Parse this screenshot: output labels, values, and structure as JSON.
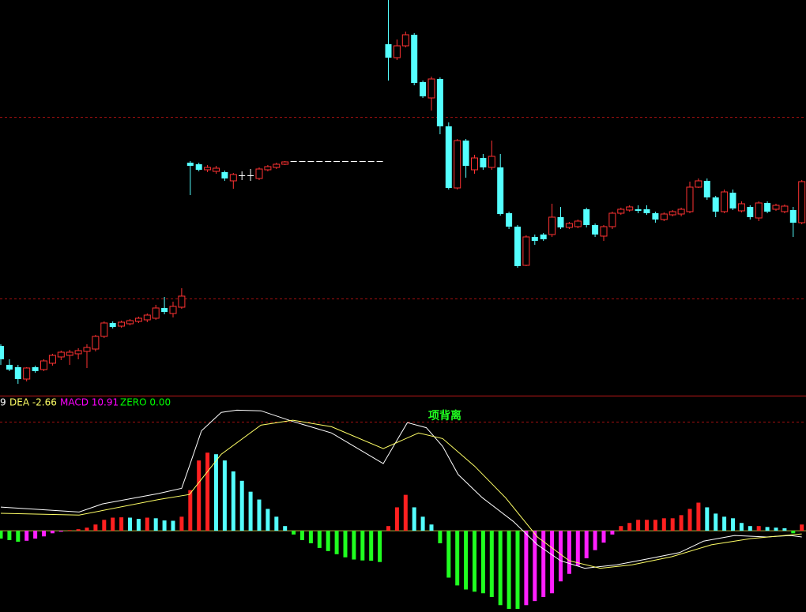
{
  "chart_data": [
    {
      "type": "candlestick",
      "categories": [
        null,
        null,
        null,
        null,
        null,
        null,
        null,
        null,
        null,
        null,
        null,
        null,
        null,
        null,
        null,
        null,
        null,
        null,
        null,
        null,
        null,
        null,
        null,
        null,
        null,
        null,
        null,
        null,
        null,
        null,
        null,
        null,
        null,
        null,
        null,
        null,
        null,
        null,
        null,
        null,
        null,
        null,
        null,
        null,
        null,
        null,
        null,
        null,
        null,
        null,
        null,
        null,
        null,
        null,
        null,
        null,
        null,
        null,
        null,
        null,
        null,
        null,
        null,
        null,
        null,
        null,
        null,
        null,
        null,
        null,
        null,
        null,
        null,
        null,
        null,
        null,
        null,
        null,
        null,
        null,
        null,
        null,
        null,
        null,
        null,
        null,
        null,
        null,
        null,
        null,
        null,
        null,
        null,
        null
      ],
      "open": [
        62,
        38,
        35,
        20,
        35,
        32,
        40,
        48,
        50,
        52,
        55,
        58,
        74,
        91,
        87,
        90,
        93,
        95,
        97,
        110,
        103,
        111,
        294,
        292,
        285,
        283,
        282,
        271,
        278,
        278,
        274,
        285,
        288,
        292,
        296,
        296,
        296,
        296,
        296,
        296,
        296,
        296,
        296,
        296,
        296,
        444,
        427,
        442,
        456,
        396,
        376,
        400,
        340,
        262,
        322,
        285,
        300,
        288,
        288,
        230,
        213,
        164,
        200,
        203,
        203,
        225,
        212,
        213,
        235,
        215,
        201,
        213,
        230,
        234,
        235,
        235,
        230,
        222,
        228,
        229,
        232,
        263,
        271,
        250,
        232,
        256,
        233,
        238,
        224,
        243,
        235,
        232,
        234,
        218
      ],
      "high": [
        64,
        45,
        38,
        35,
        37,
        45,
        52,
        56,
        57,
        59,
        64,
        76,
        93,
        93,
        94,
        96,
        99,
        103,
        114,
        124,
        118,
        135,
        296,
        294,
        291,
        290,
        284,
        281,
        283,
        286,
        288,
        291,
        294,
        296,
        296,
        296,
        296,
        296,
        296,
        296,
        296,
        296,
        296,
        296,
        296,
        500,
        450,
        460,
        458,
        398,
        403,
        402,
        345,
        324,
        324,
        304,
        305,
        322,
        305,
        232,
        215,
        202,
        203,
        205,
        242,
        238,
        219,
        222,
        237,
        217,
        215,
        232,
        237,
        240,
        240,
        240,
        232,
        231,
        234,
        237,
        270,
        274,
        274,
        252,
        260,
        260,
        245,
        240,
        245,
        245,
        242,
        241,
        238,
        272
      ],
      "low": [
        38,
        30,
        14,
        17,
        28,
        30,
        37,
        44,
        38,
        45,
        34,
        55,
        72,
        84,
        85,
        88,
        91,
        92,
        95,
        102,
        98,
        109,
        253,
        283,
        282,
        280,
        271,
        261,
        272,
        271,
        272,
        283,
        286,
        291,
        296,
        296,
        296,
        296,
        296,
        296,
        296,
        296,
        296,
        296,
        296,
        398,
        424,
        440,
        392,
        376,
        360,
        330,
        260,
        260,
        275,
        280,
        285,
        285,
        227,
        210,
        161,
        163,
        190,
        195,
        200,
        210,
        210,
        211,
        212,
        200,
        195,
        210,
        228,
        232,
        230,
        228,
        218,
        220,
        226,
        226,
        230,
        262,
        247,
        225,
        230,
        234,
        231,
        222,
        220,
        230,
        233,
        230,
        200,
        216
      ],
      "close": [
        45,
        32,
        20,
        34,
        30,
        43,
        50,
        54,
        54,
        56,
        60,
        74,
        91,
        86,
        92,
        94,
        97,
        101,
        110,
        105,
        112,
        125,
        290,
        285,
        288,
        287,
        274,
        279,
        278,
        278,
        286,
        289,
        292,
        295,
        296,
        296,
        296,
        296,
        296,
        296,
        296,
        296,
        296,
        296,
        296,
        427,
        442,
        456,
        395,
        378,
        400,
        340,
        262,
        322,
        290,
        300,
        288,
        302,
        229,
        213,
        163,
        200,
        195,
        197,
        225,
        212,
        217,
        220,
        215,
        203,
        213,
        230,
        235,
        238,
        233,
        230,
        222,
        229,
        232,
        235,
        263,
        271,
        250,
        232,
        257,
        236,
        242,
        225,
        243,
        232,
        240,
        239,
        218,
        270
      ],
      "ylim": [
        0,
        500
      ],
      "colors": {
        "up": "#ff3232",
        "down": "#54ffff",
        "flat": "#ffffff"
      }
    },
    {
      "type": "macd",
      "legend": [
        {
          "text": "9",
          "color": "#ffffff"
        },
        {
          "text": "DEA -2.66",
          "color": "#ffff66"
        },
        {
          "text": "MACD 10.91",
          "color": "#ff00ff"
        },
        {
          "text": "ZERO 0.00",
          "color": "#00ff00"
        }
      ],
      "annotation": "项背离",
      "histogram": [
        -2.5,
        -3,
        -3.5,
        -3.2,
        -2.5,
        -1.8,
        -0.8,
        -0.3,
        0.2,
        0.5,
        1,
        2,
        3.5,
        4.2,
        4.3,
        4.2,
        3.8,
        4.2,
        4,
        3.3,
        3.2,
        4.5,
        13,
        22.5,
        25,
        24.5,
        22.5,
        19,
        16,
        12.5,
        10,
        7,
        4.5,
        1.5,
        -1.2,
        -3,
        -4,
        -5.5,
        -6.5,
        -7.5,
        -8.5,
        -9.2,
        -9.5,
        -9.6,
        -10,
        1.5,
        7.5,
        11.5,
        7.5,
        4.5,
        2,
        -4,
        -15,
        -17.5,
        -18.8,
        -19.5,
        -20,
        -21.2,
        -23.8,
        -25,
        -25,
        -23.8,
        -22.5,
        -21.2,
        -20,
        -16.2,
        -13.8,
        -11.2,
        -8.8,
        -6.2,
        -3.8,
        -1.2,
        1.5,
        2.5,
        3.5,
        3.5,
        3.5,
        4,
        4,
        5,
        7,
        9,
        7.5,
        5.5,
        4.5,
        4,
        2.5,
        1.5,
        1.5,
        1.2,
        1,
        0.8,
        -0.8,
        2
      ],
      "histogram_colors": {
        "rising_positive": "#ff2020",
        "falling_positive": "#54ffff",
        "falling_negative": "#20ff20",
        "rising_negative": "#ff20ff"
      },
      "lines": [
        {
          "color": "#ffffff",
          "x": [
            0,
            9.1,
            11.8,
            18.3,
            21,
            21.9,
            23.3,
            25.6,
            27.4,
            30.2,
            33.9,
            38.4,
            44.4,
            47.2,
            49.4,
            51.3,
            53.1,
            55.9,
            59.5,
            62.3,
            65,
            67.8,
            71.5,
            75.1,
            78.8,
            81.6,
            85.2,
            88.9,
            91.7,
            93
          ],
          "values": [
            7.6,
            6,
            8.6,
            11.9,
            13.6,
            20.7,
            32,
            37.9,
            38.6,
            38.4,
            35,
            31.3,
            21.5,
            34.6,
            33,
            27,
            18,
            10.6,
            3,
            -4.5,
            -9.6,
            -12,
            -10.9,
            -9,
            -7,
            -3.3,
            -1.5,
            -2,
            -1.5,
            -2
          ]
        },
        {
          "color": "#ffff66",
          "x": [
            0,
            9.1,
            18.3,
            21.9,
            25.6,
            30.2,
            33.9,
            38.4,
            44.4,
            48.5,
            51.3,
            55,
            58.6,
            62.3,
            66,
            69.6,
            73.3,
            77.9,
            82.5,
            87.1,
            93
          ],
          "values": [
            5.6,
            5,
            10,
            11.6,
            24.5,
            33.8,
            35.4,
            33.3,
            26.3,
            31.3,
            29.5,
            20.7,
            10.6,
            -2,
            -9.6,
            -12,
            -10.9,
            -8.3,
            -4.5,
            -2.5,
            -1
          ]
        }
      ],
      "ylim": [
        -26,
        43
      ]
    }
  ]
}
